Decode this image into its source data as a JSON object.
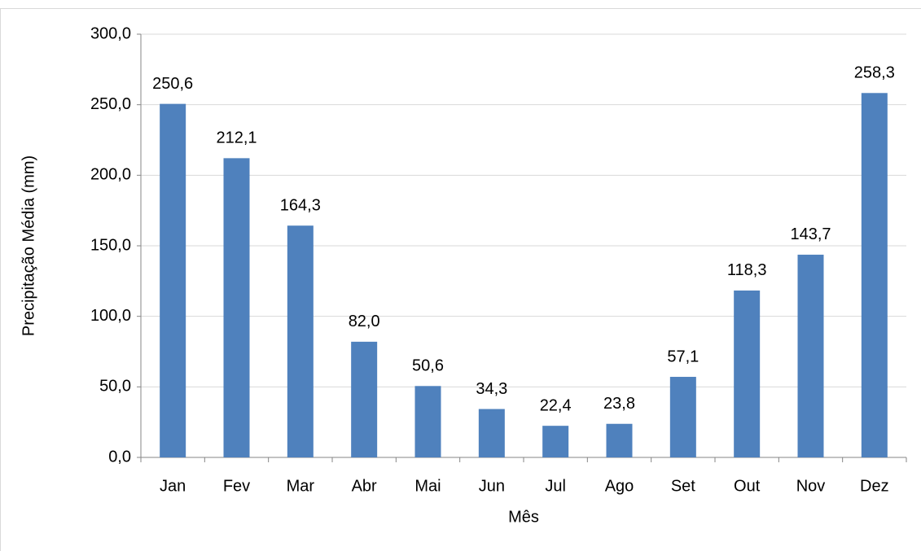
{
  "chart_data": {
    "type": "bar",
    "x_label": "Mês",
    "y_label": "Precipitação Média (mm)",
    "categories": [
      "Jan",
      "Fev",
      "Mar",
      "Abr",
      "Mai",
      "Jun",
      "Jul",
      "Ago",
      "Set",
      "Out",
      "Nov",
      "Dez"
    ],
    "values": [
      250.6,
      212.1,
      164.3,
      82.0,
      50.6,
      34.3,
      22.4,
      23.8,
      57.1,
      118.3,
      143.7,
      258.3
    ],
    "value_labels": [
      "250,6",
      "212,1",
      "164,3",
      "82,0",
      "50,6",
      "34,3",
      "22,4",
      "23,8",
      "57,1",
      "118,3",
      "143,7",
      "258,3"
    ],
    "color": "#4f81bd",
    "ylim": [
      0,
      300
    ],
    "yticks": [
      {
        "value": 0,
        "label": "0,0"
      },
      {
        "value": 50,
        "label": "50,0"
      },
      {
        "value": 100,
        "label": "100,0"
      },
      {
        "value": 150,
        "label": "150,0"
      },
      {
        "value": 200,
        "label": "200,0"
      },
      {
        "value": 250,
        "label": "250,0"
      },
      {
        "value": 300,
        "label": "300,0"
      }
    ],
    "grid": true
  }
}
